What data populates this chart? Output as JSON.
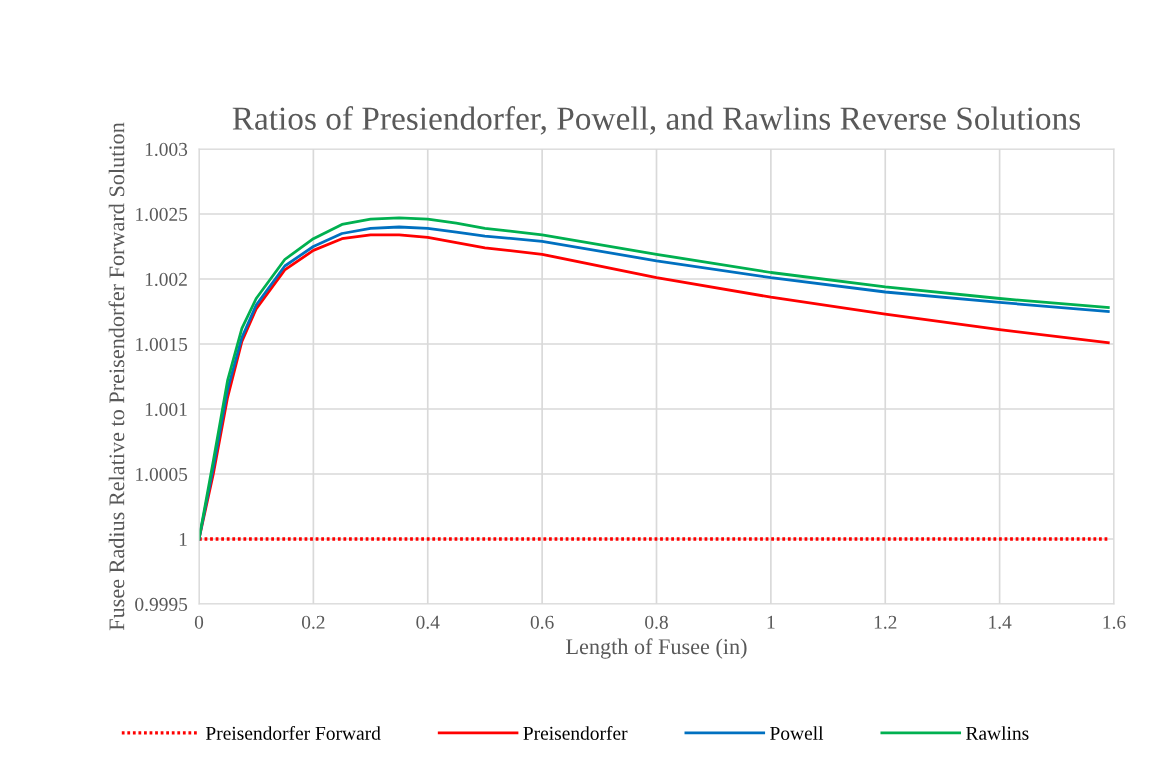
{
  "chart_data": {
    "type": "line",
    "title": "Ratios of Presiendorfer, Powell, and Rawlins Reverse Solutions",
    "xlabel": "Length of Fusee (in)",
    "ylabel": "Fusee Radius Relative to Preisendorfer Forward Solution",
    "x": [
      0,
      0.025,
      0.05,
      0.075,
      0.1,
      0.15,
      0.2,
      0.25,
      0.3,
      0.35,
      0.4,
      0.45,
      0.5,
      0.6,
      0.8,
      1.0,
      1.2,
      1.4,
      1.59
    ],
    "series": [
      {
        "name": "Preisendorfer Forward",
        "color": "#ff0000",
        "line_style": "dotted",
        "values": [
          1,
          1,
          1,
          1,
          1,
          1,
          1,
          1,
          1,
          1,
          1,
          1,
          1,
          1,
          1,
          1,
          1,
          1,
          1
        ]
      },
      {
        "name": "Preisendorfer",
        "color": "#ff0000",
        "values": [
          1,
          1.0005,
          1.00109,
          1.00152,
          1.00177,
          1.00207,
          1.00222,
          1.00231,
          1.00234,
          1.00234,
          1.00232,
          1.00228,
          1.00224,
          1.00219,
          1.00201,
          1.00186,
          1.00173,
          1.00161,
          1.00151
        ]
      },
      {
        "name": "Powell",
        "color": "#0070c0",
        "values": [
          1,
          1.00055,
          1.00115,
          1.00155,
          1.0018,
          1.0021,
          1.00225,
          1.00235,
          1.00239,
          1.0024,
          1.00239,
          1.00236,
          1.00233,
          1.00229,
          1.00214,
          1.00201,
          1.0019,
          1.00182,
          1.00175
        ]
      },
      {
        "name": "Rawlins",
        "color": "#00b050",
        "values": [
          1,
          1.0006,
          1.00122,
          1.00162,
          1.00185,
          1.00215,
          1.00231,
          1.00242,
          1.00246,
          1.00247,
          1.00246,
          1.00243,
          1.00239,
          1.00234,
          1.00219,
          1.00205,
          1.00194,
          1.00185,
          1.00178
        ]
      }
    ],
    "xlim": [
      0,
      1.6
    ],
    "xticks": [
      0,
      0.2,
      0.4,
      0.6,
      0.8,
      1,
      1.2,
      1.4,
      1.6
    ],
    "ylim": [
      0.9995,
      1.003
    ],
    "yticks": [
      0.9995,
      1,
      1.0005,
      1.001,
      1.0015,
      1.002,
      1.0025,
      1.003
    ],
    "grid": true,
    "legend": "bottom",
    "marker": "none",
    "line_style": "solid"
  }
}
